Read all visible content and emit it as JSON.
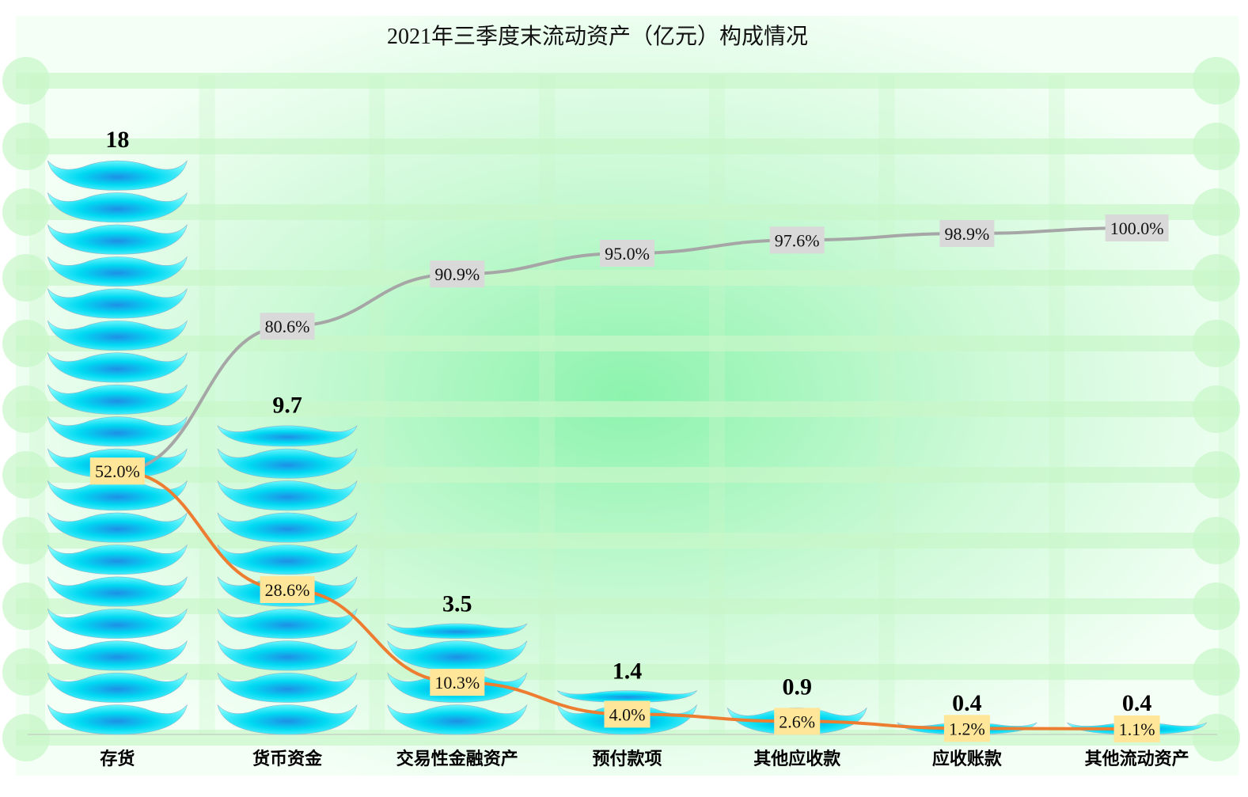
{
  "chart_data": {
    "type": "bar",
    "title": "2021年三季度末流动资产（亿元）构成情况",
    "xlabel": "",
    "ylabel": "",
    "ylim": [
      0,
      18
    ],
    "grid": true,
    "categories": [
      "存货",
      "货币资金",
      "交易性金融资产",
      "预付款项",
      "其他应收款",
      "应收账款",
      "其他流动资产"
    ],
    "values": [
      18,
      9.7,
      3.5,
      1.4,
      0.9,
      0.4,
      0.4
    ],
    "value_labels": [
      "18",
      "9.7",
      "3.5",
      "1.4",
      "0.9",
      "0.4",
      "0.4"
    ],
    "lines": [
      {
        "values": [
          52.0,
          80.6,
          90.9,
          95.0,
          97.6,
          98.9,
          100.0
        ],
        "labels": [
          "52.0%",
          "80.6%",
          "90.9%",
          "95.0%",
          "97.6%",
          "98.9%",
          "100.0%"
        ],
        "color": "#a6a6a6",
        "label_bg": "#d9d9d9",
        "ylim": [
          0,
          130
        ]
      },
      {
        "values": [
          52.0,
          28.6,
          10.3,
          4.0,
          2.6,
          1.2,
          1.1
        ],
        "labels": [
          "52.0%",
          "28.6%",
          "10.3%",
          "4.0%",
          "2.6%",
          "1.2%",
          "1.1%"
        ],
        "color": "#ed7d31",
        "label_bg": "#ffe699",
        "ylim": [
          0,
          130
        ]
      }
    ],
    "colors": {
      "bar_light": "#00ffff",
      "bar_mid": "#00d8ee",
      "bar_dark": "#1e9ee8",
      "grid_band": "#c9f7c9",
      "background_center": "#7ff2a4"
    }
  }
}
